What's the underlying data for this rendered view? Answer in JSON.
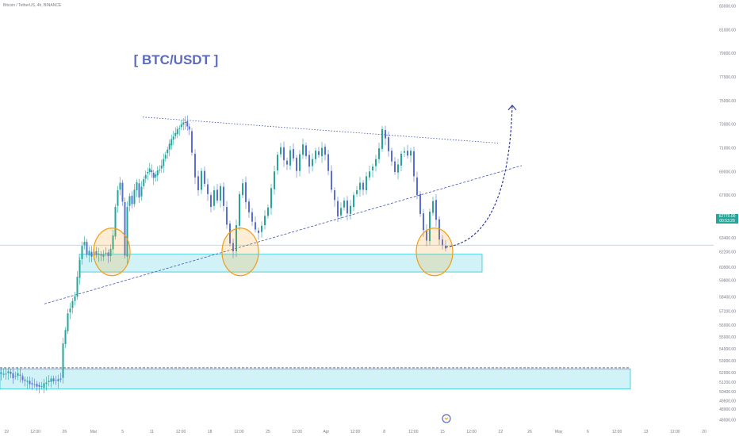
{
  "header": {
    "symbol_line": "Bitcoin / TetherUS, 4h, BINANCE"
  },
  "annotation_title": "[ BTC/USDT ]",
  "last_price": {
    "value": "62770.00",
    "countdown": "00:53:28"
  },
  "colors": {
    "up": "#26a69a",
    "down": "#5a6fd6",
    "support_zone_fill": "#b2ebf2",
    "support_zone_stroke": "#26c6da",
    "circle": "#f39c12",
    "trendline": "#3f51b5",
    "annotation_title": "#5c6bc0",
    "price_line": "#80deea"
  },
  "chart_data": {
    "type": "candlestick",
    "title": "[ BTC/USDT ]",
    "ylim": [
      47300,
      83500
    ],
    "y_ticks": [
      "83000.00",
      "81000.00",
      "79000.00",
      "77000.00",
      "75000.00",
      "73000.00",
      "71000.00",
      "69000.00",
      "67000.00",
      "65000.00",
      "63400.00",
      "62200.00",
      "60900.00",
      "59800.00",
      "58400.00",
      "57200.00",
      "56000.00",
      "55000.00",
      "54000.00",
      "53000.00",
      "52000.00",
      "51200.00",
      "50400.00",
      "49600.00",
      "48900.00",
      "48000.00"
    ],
    "x_ticks": [
      "19",
      "12:00",
      "26",
      "Mar",
      "5",
      "11",
      "12:00",
      "18",
      "12:00",
      "25",
      "12:00",
      "Apr",
      "12:00",
      "8",
      "12:00",
      "15",
      "12:00",
      "22",
      "26",
      "May",
      "6",
      "12:00",
      "13",
      "12:00",
      "20"
    ],
    "series_close_path": [
      [
        0,
        52000
      ],
      [
        6,
        51800
      ],
      [
        12,
        52100
      ],
      [
        18,
        51600
      ],
      [
        24,
        51900
      ],
      [
        30,
        51400
      ],
      [
        36,
        51200
      ],
      [
        42,
        51000
      ],
      [
        48,
        50900
      ],
      [
        54,
        50800
      ],
      [
        60,
        51200
      ],
      [
        66,
        51400
      ],
      [
        72,
        51300
      ],
      [
        78,
        51500
      ],
      [
        81,
        54500
      ],
      [
        84,
        55500
      ],
      [
        87,
        57000
      ],
      [
        90,
        57500
      ],
      [
        93,
        58000
      ],
      [
        96,
        58500
      ],
      [
        99,
        60000
      ],
      [
        102,
        61500
      ],
      [
        105,
        62800
      ],
      [
        108,
        63000
      ],
      [
        111,
        62000
      ],
      [
        114,
        62200
      ],
      [
        117,
        61800
      ],
      [
        120,
        62300
      ],
      [
        123,
        61900
      ],
      [
        126,
        62100
      ],
      [
        129,
        61800
      ],
      [
        132,
        62000
      ],
      [
        135,
        62200
      ],
      [
        138,
        61800
      ],
      [
        141,
        62500
      ],
      [
        144,
        63500
      ],
      [
        147,
        66000
      ],
      [
        150,
        67500
      ],
      [
        153,
        68000
      ],
      [
        156,
        66500
      ],
      [
        159,
        61800
      ],
      [
        162,
        66000
      ],
      [
        165,
        67000
      ],
      [
        168,
        66200
      ],
      [
        171,
        67500
      ],
      [
        174,
        68000
      ],
      [
        177,
        66800
      ],
      [
        180,
        67800
      ],
      [
        185,
        68800
      ],
      [
        190,
        69200
      ],
      [
        195,
        68500
      ],
      [
        200,
        69000
      ],
      [
        205,
        69500
      ],
      [
        210,
        70500
      ],
      [
        215,
        71300
      ],
      [
        220,
        72000
      ],
      [
        225,
        72500
      ],
      [
        230,
        73000
      ],
      [
        235,
        73200
      ],
      [
        240,
        72500
      ],
      [
        244,
        70500
      ],
      [
        248,
        68500
      ],
      [
        252,
        67500
      ],
      [
        256,
        69000
      ],
      [
        260,
        68000
      ],
      [
        264,
        67000
      ],
      [
        268,
        66000
      ],
      [
        272,
        67500
      ],
      [
        276,
        66500
      ],
      [
        280,
        67800
      ],
      [
        284,
        66000
      ],
      [
        288,
        64500
      ],
      [
        292,
        63000
      ],
      [
        296,
        62200
      ],
      [
        300,
        64500
      ],
      [
        304,
        67000
      ],
      [
        308,
        68000
      ],
      [
        312,
        66500
      ],
      [
        316,
        65500
      ],
      [
        320,
        64800
      ],
      [
        324,
        64000
      ],
      [
        328,
        63800
      ],
      [
        332,
        64500
      ],
      [
        336,
        65200
      ],
      [
        340,
        66000
      ],
      [
        344,
        67500
      ],
      [
        348,
        69000
      ],
      [
        352,
        70500
      ],
      [
        356,
        71000
      ],
      [
        360,
        70000
      ],
      [
        364,
        69500
      ],
      [
        368,
        70800
      ],
      [
        372,
        70200
      ],
      [
        376,
        69000
      ],
      [
        380,
        70500
      ],
      [
        384,
        71200
      ],
      [
        388,
        70300
      ],
      [
        392,
        69500
      ],
      [
        396,
        70000
      ],
      [
        400,
        70800
      ],
      [
        404,
        70300
      ],
      [
        408,
        71000
      ],
      [
        412,
        70500
      ],
      [
        416,
        69000
      ],
      [
        420,
        67500
      ],
      [
        424,
        66500
      ],
      [
        428,
        65200
      ],
      [
        432,
        66000
      ],
      [
        436,
        66500
      ],
      [
        440,
        65500
      ],
      [
        444,
        66000
      ],
      [
        448,
        67000
      ],
      [
        452,
        67500
      ],
      [
        456,
        68000
      ],
      [
        460,
        67500
      ],
      [
        464,
        68500
      ],
      [
        468,
        69000
      ],
      [
        472,
        69500
      ],
      [
        476,
        70000
      ],
      [
        480,
        71000
      ],
      [
        484,
        72500
      ],
      [
        488,
        71800
      ],
      [
        492,
        70800
      ],
      [
        496,
        69800
      ],
      [
        500,
        69000
      ],
      [
        504,
        69500
      ],
      [
        508,
        70500
      ],
      [
        512,
        70800
      ],
      [
        516,
        70300
      ],
      [
        520,
        70800
      ],
      [
        524,
        68500
      ],
      [
        528,
        67000
      ],
      [
        532,
        65500
      ],
      [
        536,
        64000
      ],
      [
        540,
        63200
      ],
      [
        544,
        65500
      ],
      [
        548,
        66500
      ],
      [
        552,
        65000
      ],
      [
        556,
        63200
      ],
      [
        560,
        62800
      ],
      [
        564,
        62400
      ]
    ],
    "x_range": [
      0,
      900
    ],
    "support_zones": [
      {
        "from": 60500,
        "to": 62000,
        "x_start": 100,
        "x_end": 608
      },
      {
        "from": 50600,
        "to": 52300,
        "x_start": 0,
        "x_end": 795
      }
    ],
    "trendlines": [
      {
        "style": "dotted",
        "points": [
          [
            180,
            73600
          ],
          [
            628,
            71400
          ]
        ]
      },
      {
        "style": "dashed",
        "points": [
          [
            56,
            57800
          ],
          [
            658,
            69500
          ]
        ]
      },
      {
        "style": "dashed",
        "points": [
          [
            0,
            52400
          ],
          [
            795,
            52400
          ]
        ]
      }
    ],
    "highlights": [
      {
        "x": 141,
        "y": 62200
      },
      {
        "x": 303,
        "y": 62200
      },
      {
        "x": 548,
        "y": 62200
      }
    ],
    "projection": {
      "from": [
        562,
        62600
      ],
      "to": [
        646,
        74600
      ]
    },
    "current_price": 62770
  }
}
